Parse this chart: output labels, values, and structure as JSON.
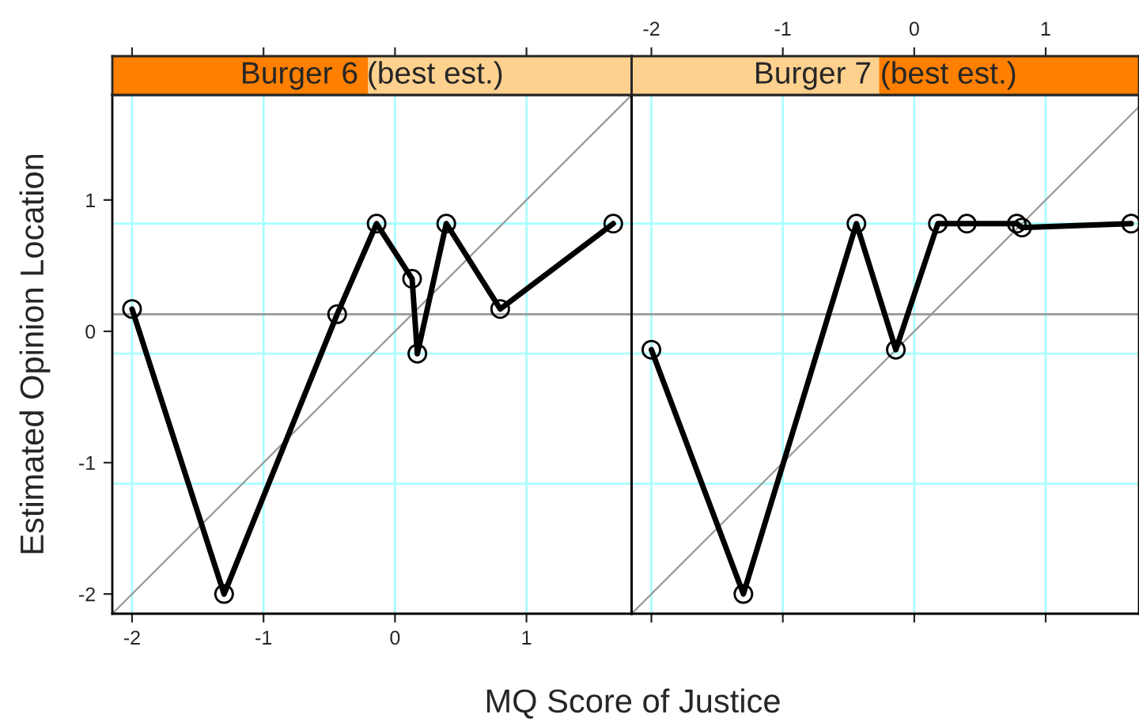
{
  "chart_data": [
    {
      "type": "line",
      "title": "Burger 6 (best est.)",
      "xlabel": "MQ Score of Justice",
      "ylabel": "Estimated Opinion Location",
      "series": [
        {
          "color": "#000000",
          "x": [
            -2.0,
            -1.3,
            -0.44,
            -0.14,
            0.13,
            0.17,
            0.39,
            0.8,
            1.66
          ],
          "values": [
            0.17,
            -2.0,
            0.13,
            0.82,
            0.4,
            -0.17,
            0.82,
            0.17,
            0.82
          ],
          "marker": "circle"
        },
        {
          "color": "#999999",
          "x": [
            -2.15,
            1.8
          ],
          "values": [
            -2.15,
            1.8
          ],
          "marker": "none"
        }
      ],
      "xlim": [
        -2.15,
        1.8
      ],
      "xticks": [
        -2,
        -1,
        0,
        1
      ],
      "ylim": [
        -2.15,
        1.8
      ],
      "yticks": [
        -2,
        -1,
        0,
        1
      ],
      "grid": "x",
      "ref_lines": [
        {
          "axis": "y",
          "value": 0.13,
          "color": "#999999"
        },
        {
          "axis": "y",
          "value": 0.82,
          "color": "#aaffff"
        },
        {
          "axis": "y",
          "value": -0.17,
          "color": "#aaffff"
        },
        {
          "axis": "y",
          "value": -1.16,
          "color": "#aaffff"
        }
      ]
    },
    {
      "type": "line",
      "title": "Burger 7 (best est.)",
      "series": [
        {
          "color": "#000000",
          "x": [
            -2.0,
            -1.3,
            -0.44,
            -0.14,
            0.18,
            0.4,
            0.78,
            0.82,
            1.65
          ],
          "values": [
            -0.14,
            -2.0,
            0.82,
            -0.14,
            0.82,
            0.82,
            0.82,
            0.79,
            0.82
          ],
          "marker": "circle"
        },
        {
          "color": "#999999",
          "x": [
            -2.15,
            1.71
          ],
          "values": [
            -2.15,
            1.71
          ],
          "marker": "none"
        }
      ],
      "xlim": [
        -2.15,
        1.71
      ],
      "xticks": [
        -2,
        -1,
        0,
        1
      ],
      "ylim": [
        -2.15,
        1.8
      ],
      "yticks": [
        -2,
        -1,
        0,
        1
      ],
      "grid": "x",
      "tick_labels": "x",
      "ref_lines": [
        {
          "axis": "y",
          "value": 0.13,
          "color": "#999999"
        },
        {
          "axis": "y",
          "value": 0.82,
          "color": "#aaffff"
        },
        {
          "axis": "y",
          "value": -0.17,
          "color": "#aaffff"
        },
        {
          "axis": "y",
          "value": -1.16,
          "color": "#aaffff"
        }
      ]
    }
  ]
}
